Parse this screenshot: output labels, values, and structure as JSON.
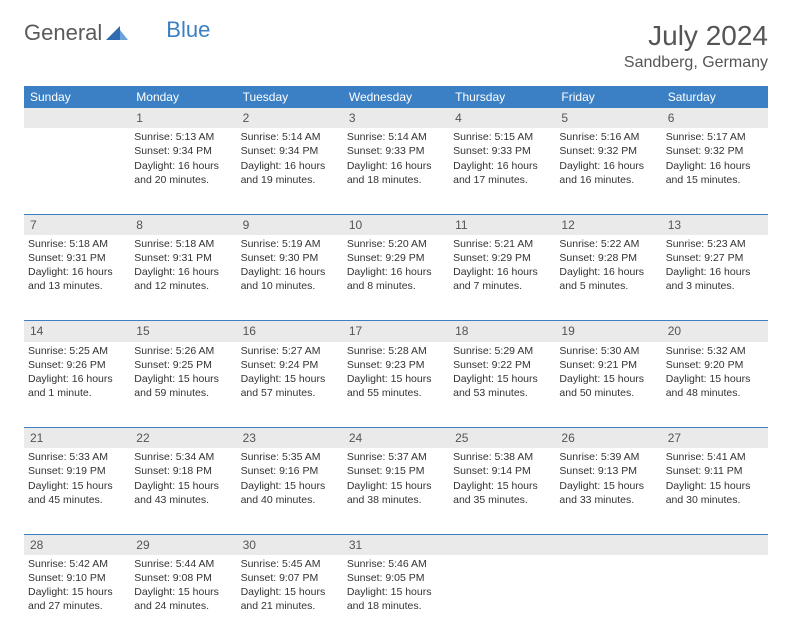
{
  "logo": {
    "text1": "General",
    "text2": "Blue"
  },
  "title": "July 2024",
  "location": "Sandberg, Germany",
  "headers": [
    "Sunday",
    "Monday",
    "Tuesday",
    "Wednesday",
    "Thursday",
    "Friday",
    "Saturday"
  ],
  "colors": {
    "header_bg": "#3b7fc4",
    "header_fg": "#ffffff",
    "daynum_bg": "#eaeaea",
    "border": "#3b7fc4",
    "text": "#333333"
  },
  "weeks": [
    [
      null,
      {
        "n": "1",
        "sr": "Sunrise: 5:13 AM",
        "ss": "Sunset: 9:34 PM",
        "d1": "Daylight: 16 hours",
        "d2": "and 20 minutes."
      },
      {
        "n": "2",
        "sr": "Sunrise: 5:14 AM",
        "ss": "Sunset: 9:34 PM",
        "d1": "Daylight: 16 hours",
        "d2": "and 19 minutes."
      },
      {
        "n": "3",
        "sr": "Sunrise: 5:14 AM",
        "ss": "Sunset: 9:33 PM",
        "d1": "Daylight: 16 hours",
        "d2": "and 18 minutes."
      },
      {
        "n": "4",
        "sr": "Sunrise: 5:15 AM",
        "ss": "Sunset: 9:33 PM",
        "d1": "Daylight: 16 hours",
        "d2": "and 17 minutes."
      },
      {
        "n": "5",
        "sr": "Sunrise: 5:16 AM",
        "ss": "Sunset: 9:32 PM",
        "d1": "Daylight: 16 hours",
        "d2": "and 16 minutes."
      },
      {
        "n": "6",
        "sr": "Sunrise: 5:17 AM",
        "ss": "Sunset: 9:32 PM",
        "d1": "Daylight: 16 hours",
        "d2": "and 15 minutes."
      }
    ],
    [
      {
        "n": "7",
        "sr": "Sunrise: 5:18 AM",
        "ss": "Sunset: 9:31 PM",
        "d1": "Daylight: 16 hours",
        "d2": "and 13 minutes."
      },
      {
        "n": "8",
        "sr": "Sunrise: 5:18 AM",
        "ss": "Sunset: 9:31 PM",
        "d1": "Daylight: 16 hours",
        "d2": "and 12 minutes."
      },
      {
        "n": "9",
        "sr": "Sunrise: 5:19 AM",
        "ss": "Sunset: 9:30 PM",
        "d1": "Daylight: 16 hours",
        "d2": "and 10 minutes."
      },
      {
        "n": "10",
        "sr": "Sunrise: 5:20 AM",
        "ss": "Sunset: 9:29 PM",
        "d1": "Daylight: 16 hours",
        "d2": "and 8 minutes."
      },
      {
        "n": "11",
        "sr": "Sunrise: 5:21 AM",
        "ss": "Sunset: 9:29 PM",
        "d1": "Daylight: 16 hours",
        "d2": "and 7 minutes."
      },
      {
        "n": "12",
        "sr": "Sunrise: 5:22 AM",
        "ss": "Sunset: 9:28 PM",
        "d1": "Daylight: 16 hours",
        "d2": "and 5 minutes."
      },
      {
        "n": "13",
        "sr": "Sunrise: 5:23 AM",
        "ss": "Sunset: 9:27 PM",
        "d1": "Daylight: 16 hours",
        "d2": "and 3 minutes."
      }
    ],
    [
      {
        "n": "14",
        "sr": "Sunrise: 5:25 AM",
        "ss": "Sunset: 9:26 PM",
        "d1": "Daylight: 16 hours",
        "d2": "and 1 minute."
      },
      {
        "n": "15",
        "sr": "Sunrise: 5:26 AM",
        "ss": "Sunset: 9:25 PM",
        "d1": "Daylight: 15 hours",
        "d2": "and 59 minutes."
      },
      {
        "n": "16",
        "sr": "Sunrise: 5:27 AM",
        "ss": "Sunset: 9:24 PM",
        "d1": "Daylight: 15 hours",
        "d2": "and 57 minutes."
      },
      {
        "n": "17",
        "sr": "Sunrise: 5:28 AM",
        "ss": "Sunset: 9:23 PM",
        "d1": "Daylight: 15 hours",
        "d2": "and 55 minutes."
      },
      {
        "n": "18",
        "sr": "Sunrise: 5:29 AM",
        "ss": "Sunset: 9:22 PM",
        "d1": "Daylight: 15 hours",
        "d2": "and 53 minutes."
      },
      {
        "n": "19",
        "sr": "Sunrise: 5:30 AM",
        "ss": "Sunset: 9:21 PM",
        "d1": "Daylight: 15 hours",
        "d2": "and 50 minutes."
      },
      {
        "n": "20",
        "sr": "Sunrise: 5:32 AM",
        "ss": "Sunset: 9:20 PM",
        "d1": "Daylight: 15 hours",
        "d2": "and 48 minutes."
      }
    ],
    [
      {
        "n": "21",
        "sr": "Sunrise: 5:33 AM",
        "ss": "Sunset: 9:19 PM",
        "d1": "Daylight: 15 hours",
        "d2": "and 45 minutes."
      },
      {
        "n": "22",
        "sr": "Sunrise: 5:34 AM",
        "ss": "Sunset: 9:18 PM",
        "d1": "Daylight: 15 hours",
        "d2": "and 43 minutes."
      },
      {
        "n": "23",
        "sr": "Sunrise: 5:35 AM",
        "ss": "Sunset: 9:16 PM",
        "d1": "Daylight: 15 hours",
        "d2": "and 40 minutes."
      },
      {
        "n": "24",
        "sr": "Sunrise: 5:37 AM",
        "ss": "Sunset: 9:15 PM",
        "d1": "Daylight: 15 hours",
        "d2": "and 38 minutes."
      },
      {
        "n": "25",
        "sr": "Sunrise: 5:38 AM",
        "ss": "Sunset: 9:14 PM",
        "d1": "Daylight: 15 hours",
        "d2": "and 35 minutes."
      },
      {
        "n": "26",
        "sr": "Sunrise: 5:39 AM",
        "ss": "Sunset: 9:13 PM",
        "d1": "Daylight: 15 hours",
        "d2": "and 33 minutes."
      },
      {
        "n": "27",
        "sr": "Sunrise: 5:41 AM",
        "ss": "Sunset: 9:11 PM",
        "d1": "Daylight: 15 hours",
        "d2": "and 30 minutes."
      }
    ],
    [
      {
        "n": "28",
        "sr": "Sunrise: 5:42 AM",
        "ss": "Sunset: 9:10 PM",
        "d1": "Daylight: 15 hours",
        "d2": "and 27 minutes."
      },
      {
        "n": "29",
        "sr": "Sunrise: 5:44 AM",
        "ss": "Sunset: 9:08 PM",
        "d1": "Daylight: 15 hours",
        "d2": "and 24 minutes."
      },
      {
        "n": "30",
        "sr": "Sunrise: 5:45 AM",
        "ss": "Sunset: 9:07 PM",
        "d1": "Daylight: 15 hours",
        "d2": "and 21 minutes."
      },
      {
        "n": "31",
        "sr": "Sunrise: 5:46 AM",
        "ss": "Sunset: 9:05 PM",
        "d1": "Daylight: 15 hours",
        "d2": "and 18 minutes."
      },
      null,
      null,
      null
    ]
  ]
}
